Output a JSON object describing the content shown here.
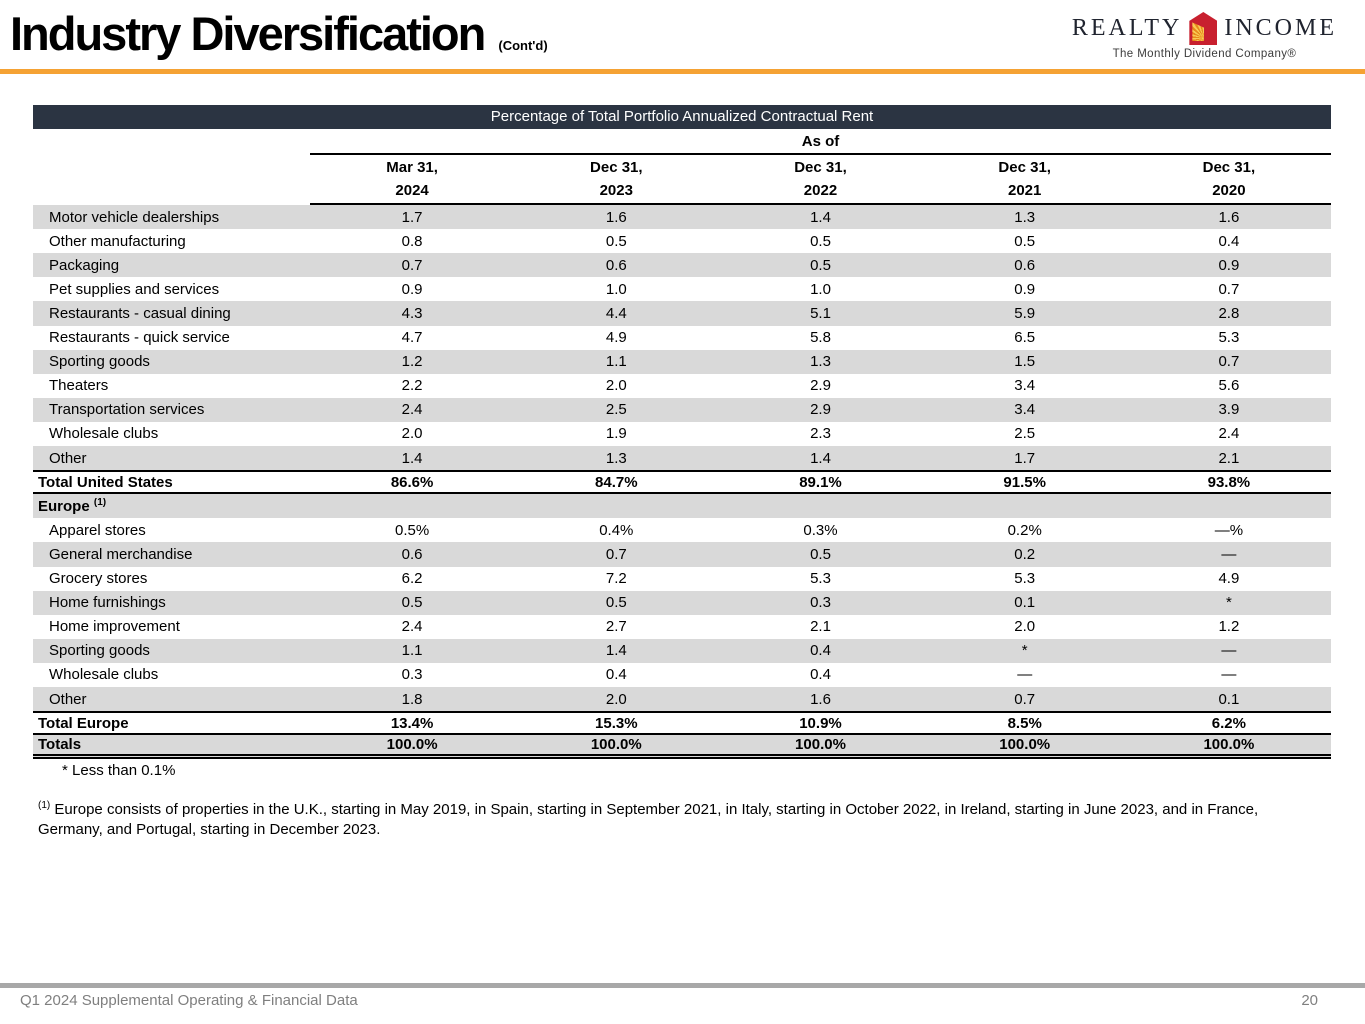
{
  "header": {
    "title": "Industry Diversification",
    "title_suffix": "(Cont'd)",
    "logo": {
      "realty": "REALTY",
      "income": "INCOME",
      "tagline": "The Monthly Dividend Company®"
    }
  },
  "table": {
    "banner": "Percentage of Total Portfolio Annualized Contractual Rent",
    "as_of_label": "As of",
    "columns": [
      {
        "line1": "Mar 31,",
        "line2": "2024"
      },
      {
        "line1": "Dec 31,",
        "line2": "2023"
      },
      {
        "line1": "Dec 31,",
        "line2": "2022"
      },
      {
        "line1": "Dec 31,",
        "line2": "2021"
      },
      {
        "line1": "Dec 31,",
        "line2": "2020"
      }
    ],
    "us": {
      "rows": [
        {
          "label": "Motor vehicle dealerships",
          "values": [
            "1.7",
            "1.6",
            "1.4",
            "1.3",
            "1.6"
          ]
        },
        {
          "label": "Other manufacturing",
          "values": [
            "0.8",
            "0.5",
            "0.5",
            "0.5",
            "0.4"
          ]
        },
        {
          "label": "Packaging",
          "values": [
            "0.7",
            "0.6",
            "0.5",
            "0.6",
            "0.9"
          ]
        },
        {
          "label": "Pet supplies and services",
          "values": [
            "0.9",
            "1.0",
            "1.0",
            "0.9",
            "0.7"
          ]
        },
        {
          "label": "Restaurants - casual dining",
          "values": [
            "4.3",
            "4.4",
            "5.1",
            "5.9",
            "2.8"
          ]
        },
        {
          "label": "Restaurants - quick service",
          "values": [
            "4.7",
            "4.9",
            "5.8",
            "6.5",
            "5.3"
          ]
        },
        {
          "label": "Sporting goods",
          "values": [
            "1.2",
            "1.1",
            "1.3",
            "1.5",
            "0.7"
          ]
        },
        {
          "label": "Theaters",
          "values": [
            "2.2",
            "2.0",
            "2.9",
            "3.4",
            "5.6"
          ]
        },
        {
          "label": "Transportation services",
          "values": [
            "2.4",
            "2.5",
            "2.9",
            "3.4",
            "3.9"
          ]
        },
        {
          "label": "Wholesale clubs",
          "values": [
            "2.0",
            "1.9",
            "2.3",
            "2.5",
            "2.4"
          ]
        },
        {
          "label": "Other",
          "values": [
            "1.4",
            "1.3",
            "1.4",
            "1.7",
            "2.1"
          ]
        }
      ],
      "total": {
        "label": "Total United States",
        "values": [
          "86.6%",
          "84.7%",
          "89.1%",
          "91.5%",
          "93.8%"
        ]
      }
    },
    "europe": {
      "header_label": "Europe",
      "header_sup": "(1)",
      "rows": [
        {
          "label": "Apparel stores",
          "values": [
            "0.5%",
            "0.4%",
            "0.3%",
            "0.2%",
            "—%"
          ]
        },
        {
          "label": "General merchandise",
          "values": [
            "0.6",
            "0.7",
            "0.5",
            "0.2",
            "—"
          ]
        },
        {
          "label": "Grocery stores",
          "values": [
            "6.2",
            "7.2",
            "5.3",
            "5.3",
            "4.9"
          ]
        },
        {
          "label": "Home furnishings",
          "values": [
            "0.5",
            "0.5",
            "0.3",
            "0.1",
            "*"
          ]
        },
        {
          "label": "Home improvement",
          "values": [
            "2.4",
            "2.7",
            "2.1",
            "2.0",
            "1.2"
          ]
        },
        {
          "label": "Sporting goods",
          "values": [
            "1.1",
            "1.4",
            "0.4",
            "*",
            "—"
          ]
        },
        {
          "label": "Wholesale clubs",
          "values": [
            "0.3",
            "0.4",
            "0.4",
            "—",
            "—"
          ]
        },
        {
          "label": "Other",
          "values": [
            "1.8",
            "2.0",
            "1.6",
            "0.7",
            "0.1"
          ]
        }
      ],
      "total": {
        "label": "Total Europe",
        "values": [
          "13.4%",
          "15.3%",
          "10.9%",
          "8.5%",
          "6.2%"
        ]
      }
    },
    "totals": {
      "label": "Totals",
      "values": [
        "100.0%",
        "100.0%",
        "100.0%",
        "100.0%",
        "100.0%"
      ]
    }
  },
  "footnotes": {
    "asterisk": "* Less than 0.1%",
    "ref": "(1)",
    "europe": "Europe consists of properties in the U.K., starting in May 2019, in Spain, starting in September 2021, in Italy, starting in October 2022, in Ireland, starting in June 2023, and in France, Germany, and Portugal, starting in December 2023."
  },
  "footer": {
    "left": "Q1 2024 Supplemental Operating & Financial Data",
    "page": "20"
  },
  "colors": {
    "accent_orange": "#F5A234",
    "banner_bg": "#2B3442",
    "row_stripe": "#D9D9D9",
    "logo_red": "#C8202F",
    "footer_bar": "#A8A8A8",
    "footer_text": "#7f7f7f"
  }
}
